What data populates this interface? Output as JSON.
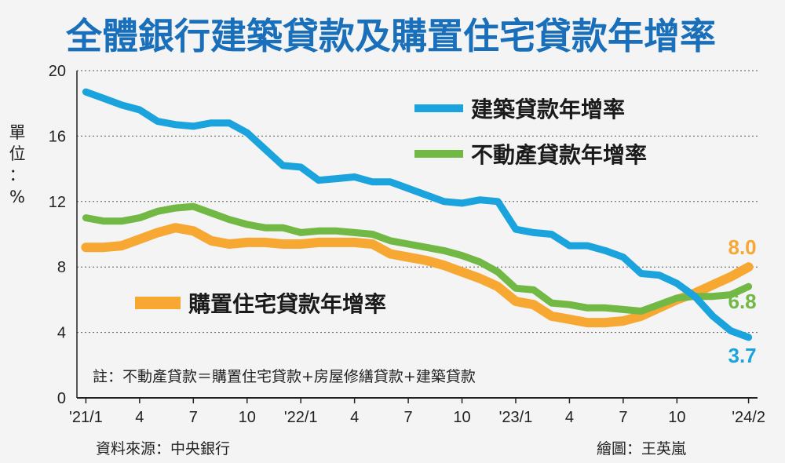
{
  "chart_data": {
    "type": "line",
    "title": "全體銀行建築貸款及購置住宅貸款年增率",
    "unit_label": [
      "單",
      "位",
      "：",
      "%"
    ],
    "ylim": [
      0,
      20
    ],
    "yticks": [
      "0",
      "4",
      "8",
      "12",
      "16",
      "20"
    ],
    "xtick_labels": [
      "'21/1",
      "4",
      "7",
      "10",
      "'22/1",
      "4",
      "7",
      "10",
      "'23/1",
      "4",
      "7",
      "10",
      "'24/2"
    ],
    "xtick_index": [
      0,
      3,
      6,
      9,
      12,
      15,
      18,
      21,
      24,
      27,
      30,
      33,
      37
    ],
    "n_points": 38,
    "series": [
      {
        "name": "建築貸款年增率",
        "color": "#1aa3dd",
        "values": [
          18.7,
          18.3,
          17.9,
          17.6,
          16.9,
          16.7,
          16.6,
          16.8,
          16.8,
          16.2,
          15.2,
          14.2,
          14.1,
          13.3,
          13.4,
          13.5,
          13.2,
          13.2,
          12.8,
          12.4,
          12.0,
          11.9,
          12.1,
          12.0,
          10.3,
          10.1,
          10.0,
          9.3,
          9.3,
          9.0,
          8.6,
          7.6,
          7.5,
          7.0,
          6.2,
          5.0,
          4.1,
          3.7
        ],
        "end_label": "3.7"
      },
      {
        "name": "不動產貸款年增率",
        "color": "#71b844",
        "values": [
          11.0,
          10.8,
          10.8,
          11.0,
          11.4,
          11.6,
          11.7,
          11.3,
          10.9,
          10.6,
          10.4,
          10.4,
          10.1,
          10.2,
          10.2,
          10.1,
          10.0,
          9.6,
          9.4,
          9.2,
          9.0,
          8.7,
          8.3,
          7.7,
          6.7,
          6.6,
          5.8,
          5.7,
          5.5,
          5.5,
          5.4,
          5.3,
          5.7,
          6.1,
          6.2,
          6.2,
          6.3,
          6.8
        ],
        "end_label": "6.8"
      },
      {
        "name": "購置住宅貸款年增率",
        "color": "#f7a833",
        "values": [
          9.2,
          9.2,
          9.3,
          9.7,
          10.1,
          10.4,
          10.2,
          9.6,
          9.4,
          9.5,
          9.5,
          9.4,
          9.4,
          9.5,
          9.5,
          9.5,
          9.4,
          8.8,
          8.6,
          8.4,
          8.1,
          7.7,
          7.3,
          6.8,
          5.9,
          5.7,
          5.0,
          4.8,
          4.6,
          4.6,
          4.7,
          5.0,
          5.5,
          6.0,
          6.4,
          6.9,
          7.4,
          8.0
        ],
        "end_label": "8.0"
      }
    ],
    "legend": [
      {
        "label": "建築貸款年增率"
      },
      {
        "label": "不動產貸款年增率"
      },
      {
        "label": "購置住宅貸款年增率"
      }
    ],
    "note": "註：不動產貸款＝購置住宅貸款+房屋修繕貸款+建築貸款",
    "source": "資料來源：中央銀行",
    "credit": "繪圖：王英嵐"
  }
}
